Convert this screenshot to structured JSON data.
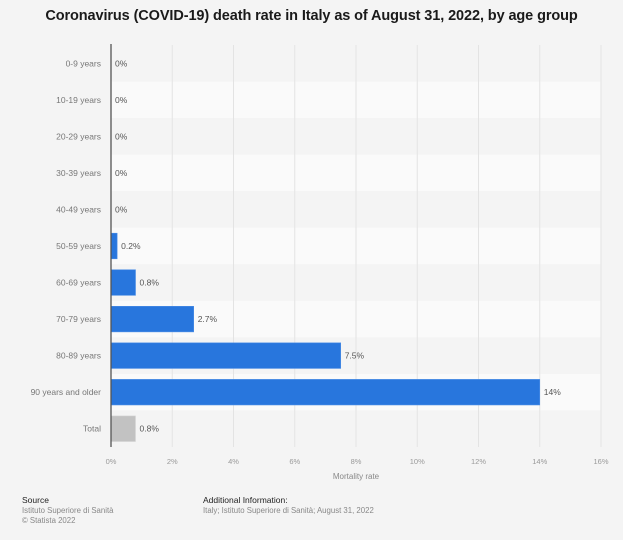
{
  "chart_data": {
    "type": "bar",
    "orientation": "horizontal",
    "title": "Coronavirus (COVID-19) death rate in Italy as of August 31, 2022, by age group",
    "categories": [
      "0-9 years",
      "10-19 years",
      "20-29 years",
      "30-39 years",
      "40-49 years",
      "50-59 years",
      "60-69 years",
      "70-79 years",
      "80-89 years",
      "90 years and older",
      "Total"
    ],
    "values": [
      0,
      0,
      0,
      0,
      0,
      0.2,
      0.8,
      2.7,
      7.5,
      14,
      0.8
    ],
    "data_labels": [
      "0%",
      "0%",
      "0%",
      "0%",
      "0%",
      "0.2%",
      "0.8%",
      "2.7%",
      "7.5%",
      "14%",
      "0.8%"
    ],
    "highlight_category": "Total",
    "xlabel": "Mortality rate",
    "ylabel": "",
    "xlim": [
      0,
      16
    ],
    "xticks": [
      0,
      2,
      4,
      6,
      8,
      10,
      12,
      14,
      16
    ],
    "xtick_labels": [
      "0%",
      "2%",
      "4%",
      "6%",
      "8%",
      "10%",
      "12%",
      "14%",
      "16%"
    ],
    "grid": true,
    "legend": "none",
    "colors": {
      "bar": "#2876dd",
      "bar_highlight": "#c2c2c2",
      "axis": "#555555"
    }
  },
  "footer": {
    "source_heading": "Source",
    "source_lines": [
      "Istituto Superiore di Sanità",
      "© Statista 2022"
    ],
    "additional_heading": "Additional Information:",
    "additional_text": "Italy; Istituto Superiore di Sanità; August 31, 2022"
  }
}
